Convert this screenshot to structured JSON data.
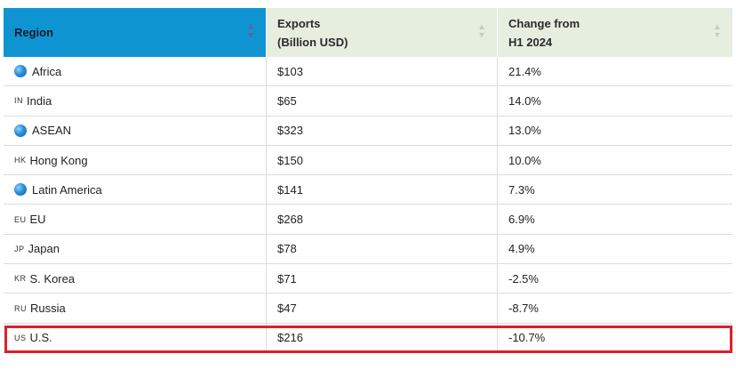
{
  "header": {
    "region": "Region",
    "exports": "Exports\n(Billion USD)",
    "change": "Change from\nH1 2024"
  },
  "rows": [
    {
      "flag": "",
      "icon": "globe-icon",
      "region": "Africa",
      "exports": "$103",
      "change": "21.4%"
    },
    {
      "flag": "IN",
      "icon": "",
      "region": "India",
      "exports": "$65",
      "change": "14.0%"
    },
    {
      "flag": "",
      "icon": "globe-icon",
      "region": "ASEAN",
      "exports": "$323",
      "change": "13.0%"
    },
    {
      "flag": "HK",
      "icon": "",
      "region": "Hong Kong",
      "exports": "$150",
      "change": "10.0%"
    },
    {
      "flag": "",
      "icon": "globe-icon",
      "region": "Latin America",
      "exports": "$141",
      "change": "7.3%"
    },
    {
      "flag": "EU",
      "icon": "",
      "region": "EU",
      "exports": "$268",
      "change": "6.9%"
    },
    {
      "flag": "JP",
      "icon": "",
      "region": "Japan",
      "exports": "$78",
      "change": "4.9%"
    },
    {
      "flag": "KR",
      "icon": "",
      "region": "S. Korea",
      "exports": "$71",
      "change": "-2.5%"
    },
    {
      "flag": "RU",
      "icon": "",
      "region": "Russia",
      "exports": "$47",
      "change": "-8.7%"
    },
    {
      "flag": "US",
      "icon": "",
      "region": "U.S.",
      "exports": "$216",
      "change": "-10.7%"
    }
  ],
  "colors": {
    "header_active": "#0f94d2",
    "header_inactive": "#e6eedf",
    "highlight": "#dd1f2a"
  }
}
